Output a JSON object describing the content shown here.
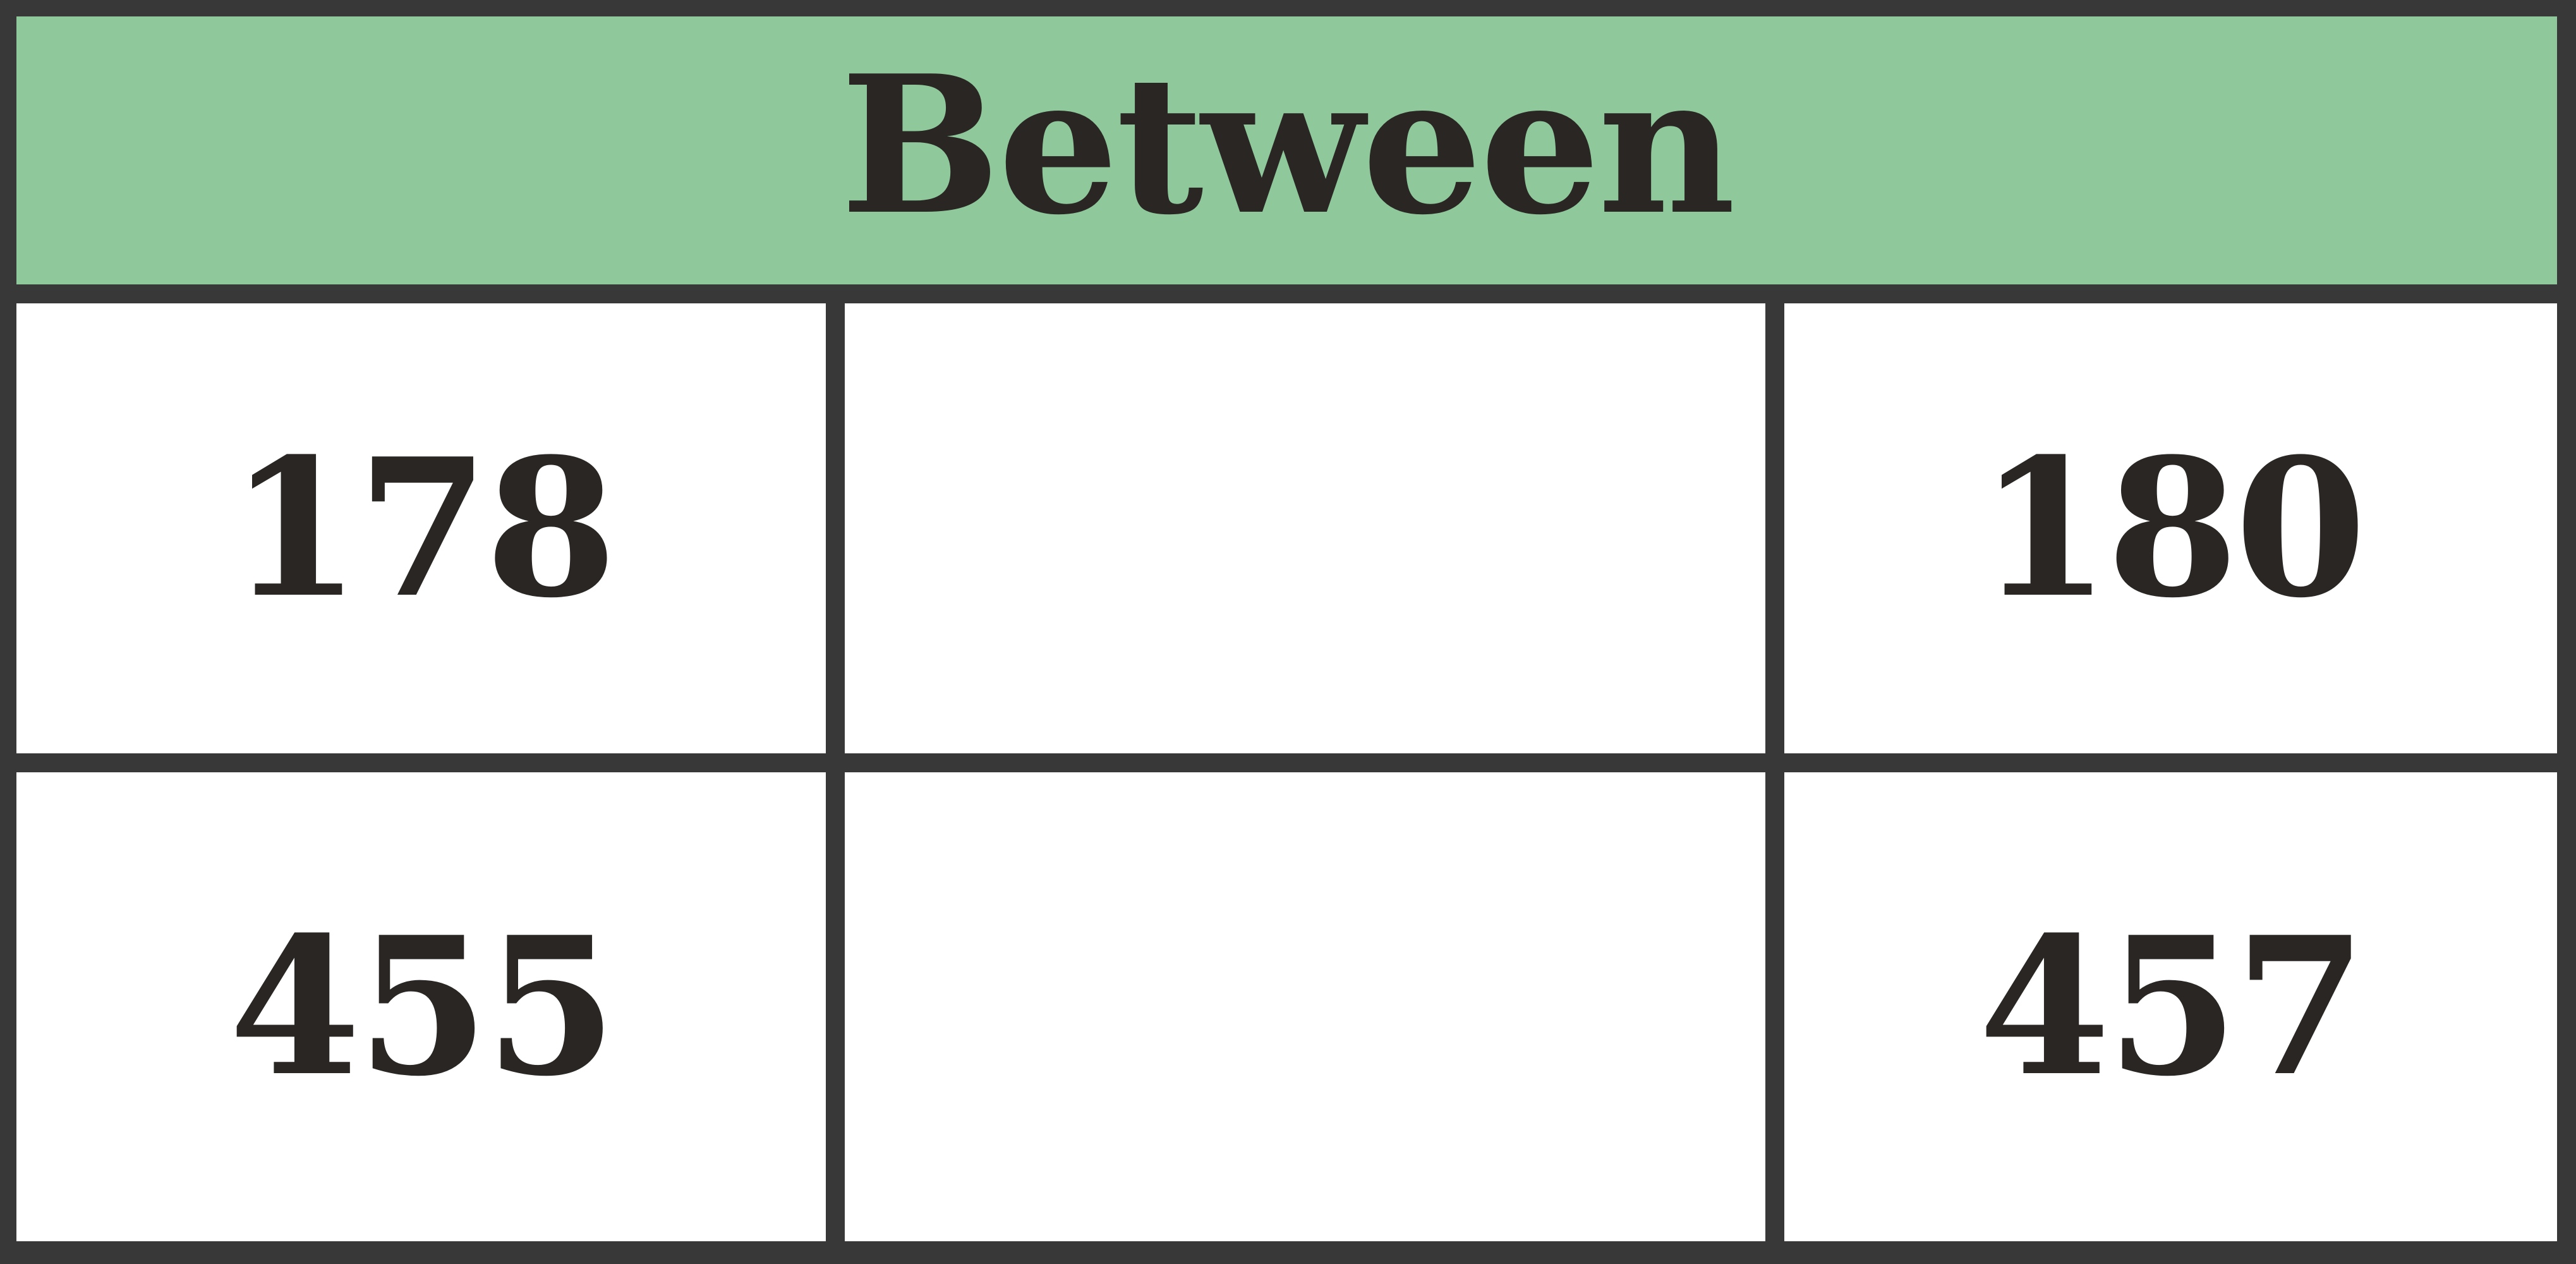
{
  "table": {
    "header": "Between",
    "rows": [
      {
        "left": "178",
        "middle": "",
        "right": "180"
      },
      {
        "left": "455",
        "middle": "",
        "right": "457"
      }
    ]
  },
  "colors": {
    "header_background": "#8fc99b",
    "grid_lines": "#383838",
    "text": "#2a2624",
    "cell_background": "#ffffff"
  }
}
